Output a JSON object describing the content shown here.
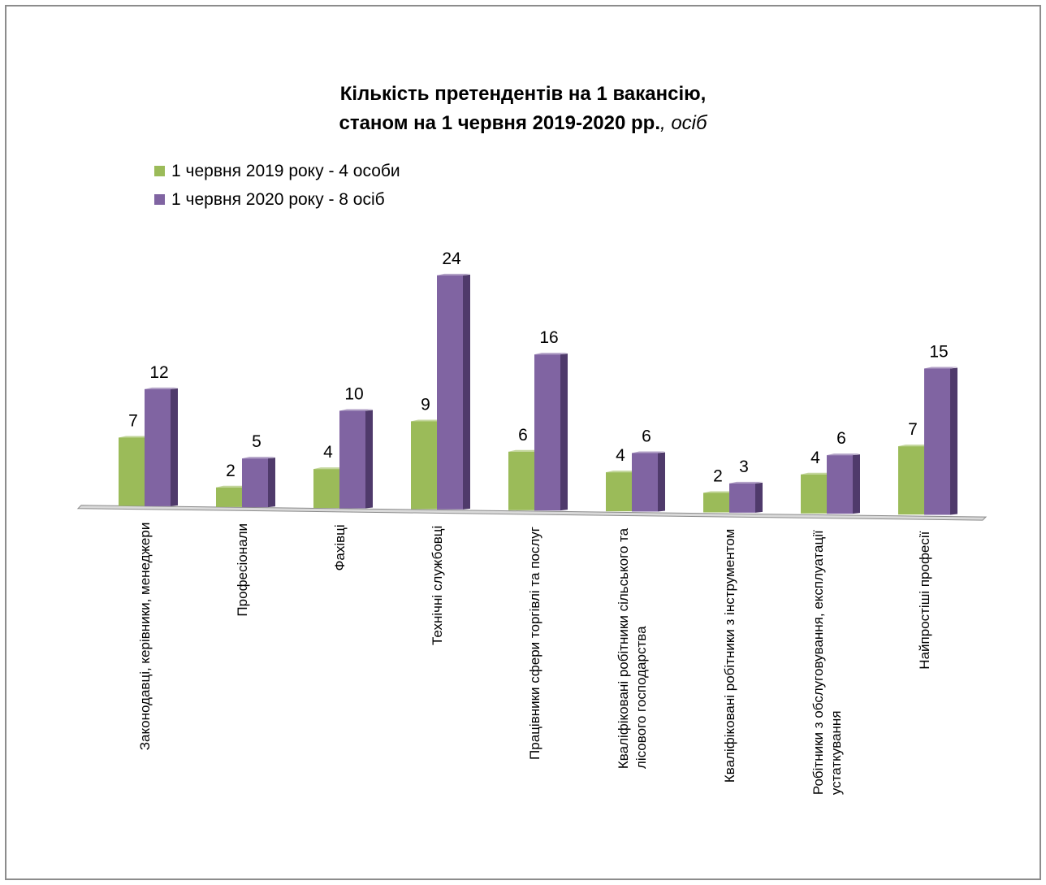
{
  "chart_data": {
    "type": "bar",
    "title_line1": "Кількість претендентів на 1 вакансію,",
    "title_line2_bold": "станом на 1 червня 2019-2020 рр.",
    "title_line2_italic": ", осіб",
    "categories": [
      [
        "Законодавці, керівники, менеджери"
      ],
      [
        "Професіонали"
      ],
      [
        "Фахівці"
      ],
      [
        "Технічні службовці"
      ],
      [
        "Працівники сфери торгівлі та послуг"
      ],
      [
        "Кваліфіковані робітники сільського та",
        "лісового господарства"
      ],
      [
        "Кваліфіковані робітники з інструментом"
      ],
      [
        "Робітники з обслуговування, експлуатації",
        "устаткування"
      ],
      [
        "Найпростіші професії"
      ]
    ],
    "series": [
      {
        "name": "1 червня 2019 року - 4 особи",
        "values": [
          7,
          2,
          4,
          9,
          6,
          4,
          2,
          4,
          7
        ],
        "color": "#9bbb59",
        "side": "#77933c",
        "top": "#c3d69b"
      },
      {
        "name": "1 червня 2020 року - 8 осіб",
        "values": [
          12,
          5,
          10,
          24,
          16,
          6,
          3,
          6,
          15
        ],
        "color": "#8064a2",
        "side": "#4f3a6b",
        "top": "#b3a2c7"
      }
    ],
    "legend_position": "top-left",
    "grid": false,
    "data_labels": true
  }
}
